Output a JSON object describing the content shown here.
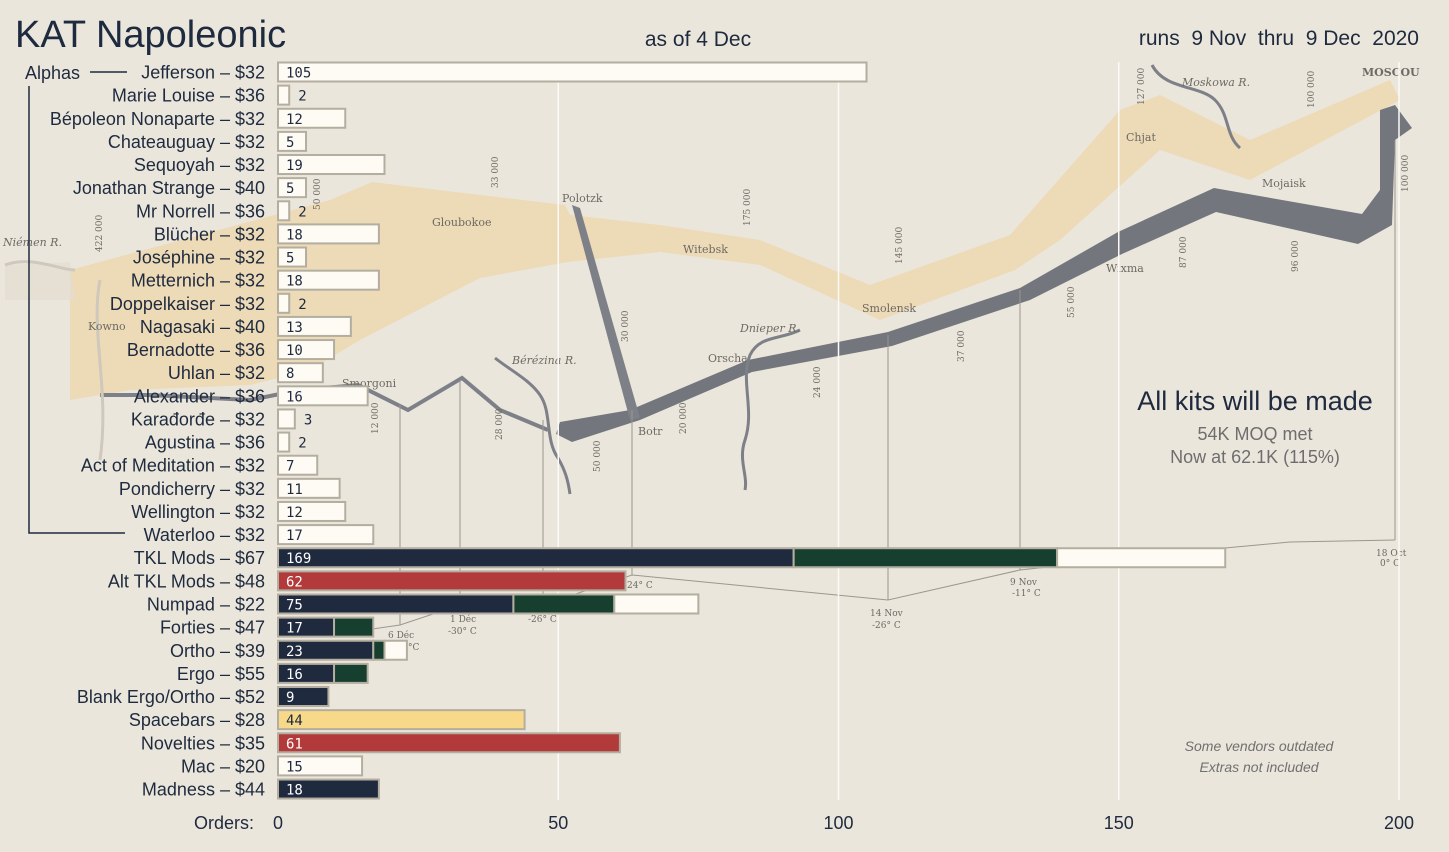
{
  "title": "KAT Napoleonic",
  "as_of": "as of 4 Dec",
  "runs": "runs  9 Nov  thru  9 Dec  2020",
  "group_label": "Alphas",
  "annotation": {
    "headline": "All kits will be made",
    "line1": "54K MOQ met",
    "line2": "Now at 62.1K (115%)"
  },
  "footnote": {
    "line1": "Some vendors outdated",
    "line2": "Extras not included"
  },
  "map_labels": {
    "cities": [
      "MOSCOU",
      "Chjat",
      "Mojaisk",
      "Wixma",
      "Smolensk",
      "Witebsk",
      "Polotzk",
      "Gloubokoe",
      "Orscha",
      "Botr",
      "Smorgoni",
      "Kowno",
      "Niémen R."
    ],
    "rivers": [
      "Moskowa R.",
      "Dnieper R.",
      "Bérézina R."
    ],
    "troops": [
      "127 000",
      "100 000",
      "100 000",
      "87 000",
      "96 000",
      "55 000",
      "145 000",
      "175 000",
      "33 000",
      "50 000",
      "422 000",
      "30 000",
      "37 000",
      "24 000",
      "20 000",
      "28 000",
      "12 000",
      "50 000"
    ],
    "temps": [
      "18 Oct",
      "0° C",
      "9 Nov",
      "-11° C",
      "14 Nov",
      "-26° C",
      "-24° C",
      "1 Déc",
      "-30° C",
      "-26° C",
      "6 Déc",
      "°C"
    ]
  },
  "chart_data": {
    "type": "bar",
    "orientation": "horizontal",
    "stacked": true,
    "xlabel": "Orders:",
    "xlim": [
      0,
      200
    ],
    "xticks": [
      0,
      50,
      100,
      150,
      200
    ],
    "grid": true,
    "colors": {
      "white": "#fdfbf4",
      "navy": "#1f2a3f",
      "green": "#173f30",
      "red": "#b33a3a",
      "yellow": "#f7d989"
    },
    "bars": [
      {
        "label": "Jefferson – $32",
        "total": 105,
        "segments": [
          {
            "value": 105,
            "color": "white"
          }
        ]
      },
      {
        "label": "Marie Louise – $36",
        "total": 2,
        "segments": [
          {
            "value": 2,
            "color": "white"
          }
        ]
      },
      {
        "label": "Bépoleon Nonaparte – $32",
        "total": 12,
        "segments": [
          {
            "value": 12,
            "color": "white"
          }
        ]
      },
      {
        "label": "Chateauguay – $32",
        "total": 5,
        "segments": [
          {
            "value": 5,
            "color": "white"
          }
        ]
      },
      {
        "label": "Sequoyah – $32",
        "total": 19,
        "segments": [
          {
            "value": 19,
            "color": "white"
          }
        ]
      },
      {
        "label": "Jonathan Strange – $40",
        "total": 5,
        "segments": [
          {
            "value": 5,
            "color": "white"
          }
        ]
      },
      {
        "label": "Mr Norrell – $36",
        "total": 2,
        "segments": [
          {
            "value": 2,
            "color": "white"
          }
        ]
      },
      {
        "label": "Blücher – $32",
        "total": 18,
        "segments": [
          {
            "value": 18,
            "color": "white"
          }
        ]
      },
      {
        "label": "Joséphine – $32",
        "total": 5,
        "segments": [
          {
            "value": 5,
            "color": "white"
          }
        ]
      },
      {
        "label": "Metternich – $32",
        "total": 18,
        "segments": [
          {
            "value": 18,
            "color": "white"
          }
        ]
      },
      {
        "label": "Doppelkaiser – $32",
        "total": 2,
        "segments": [
          {
            "value": 2,
            "color": "white"
          }
        ]
      },
      {
        "label": "Nagasaki – $40",
        "total": 13,
        "segments": [
          {
            "value": 13,
            "color": "white"
          }
        ]
      },
      {
        "label": "Bernadotte – $36",
        "total": 10,
        "segments": [
          {
            "value": 10,
            "color": "white"
          }
        ]
      },
      {
        "label": "Uhlan – $32",
        "total": 8,
        "segments": [
          {
            "value": 8,
            "color": "white"
          }
        ]
      },
      {
        "label": "Alexander – $36",
        "total": 16,
        "segments": [
          {
            "value": 16,
            "color": "white"
          }
        ]
      },
      {
        "label": "Karađorđe – $32",
        "total": 3,
        "segments": [
          {
            "value": 3,
            "color": "white"
          }
        ]
      },
      {
        "label": "Agustina – $36",
        "total": 2,
        "segments": [
          {
            "value": 2,
            "color": "white"
          }
        ]
      },
      {
        "label": "Act of Meditation – $32",
        "total": 7,
        "segments": [
          {
            "value": 7,
            "color": "white"
          }
        ]
      },
      {
        "label": "Pondicherry – $32",
        "total": 11,
        "segments": [
          {
            "value": 11,
            "color": "white"
          }
        ]
      },
      {
        "label": "Wellington – $32",
        "total": 12,
        "segments": [
          {
            "value": 12,
            "color": "white"
          }
        ]
      },
      {
        "label": "Waterloo – $32",
        "total": 17,
        "segments": [
          {
            "value": 17,
            "color": "white"
          }
        ]
      },
      {
        "label": "TKL Mods – $67",
        "total": 169,
        "segments": [
          {
            "value": 92,
            "color": "navy"
          },
          {
            "value": 47,
            "color": "green"
          },
          {
            "value": 30,
            "color": "white"
          }
        ]
      },
      {
        "label": "Alt TKL Mods – $48",
        "total": 62,
        "segments": [
          {
            "value": 62,
            "color": "red"
          }
        ]
      },
      {
        "label": "Numpad – $22",
        "total": 75,
        "segments": [
          {
            "value": 42,
            "color": "navy"
          },
          {
            "value": 18,
            "color": "green"
          },
          {
            "value": 15,
            "color": "white"
          }
        ]
      },
      {
        "label": "Forties – $47",
        "total": 17,
        "segments": [
          {
            "value": 10,
            "color": "navy"
          },
          {
            "value": 7,
            "color": "green"
          }
        ]
      },
      {
        "label": "Ortho – $39",
        "total": 23,
        "segments": [
          {
            "value": 17,
            "color": "navy"
          },
          {
            "value": 2,
            "color": "green"
          },
          {
            "value": 4,
            "color": "white"
          }
        ]
      },
      {
        "label": "Ergo – $55",
        "total": 16,
        "segments": [
          {
            "value": 10,
            "color": "navy"
          },
          {
            "value": 6,
            "color": "green"
          }
        ]
      },
      {
        "label": "Blank Ergo/Ortho – $52",
        "total": 9,
        "segments": [
          {
            "value": 9,
            "color": "navy"
          }
        ]
      },
      {
        "label": "Spacebars – $28",
        "total": 44,
        "segments": [
          {
            "value": 44,
            "color": "yellow"
          }
        ]
      },
      {
        "label": "Novelties – $35",
        "total": 61,
        "segments": [
          {
            "value": 61,
            "color": "red"
          }
        ]
      },
      {
        "label": "Mac – $20",
        "total": 15,
        "segments": [
          {
            "value": 15,
            "color": "white"
          }
        ]
      },
      {
        "label": "Madness – $44",
        "total": 18,
        "segments": [
          {
            "value": 18,
            "color": "navy"
          }
        ]
      }
    ]
  }
}
